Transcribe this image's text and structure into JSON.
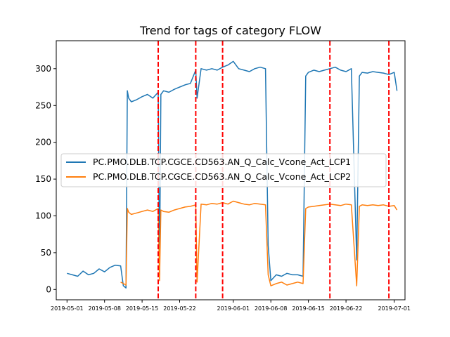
{
  "chart_data": {
    "type": "line",
    "title": "Trend for tags of category FLOW",
    "xlabel": "",
    "ylabel": "",
    "xlim": [
      "2019-04-29",
      "2019-07-03"
    ],
    "ylim": [
      -14,
      338
    ],
    "y_ticks": [
      0,
      50,
      100,
      150,
      200,
      250,
      300
    ],
    "x_ticks": [
      "2019-05-01",
      "2019-05-08",
      "2019-05-15",
      "2019-05-22",
      "2019-06-01",
      "2019-06-08",
      "2019-06-15",
      "2019-06-22",
      "2019-07-01"
    ],
    "grid": false,
    "legend_position": "center-left",
    "vlines": {
      "color": "#ff0000",
      "style": "dashed",
      "x": [
        "2019-05-18",
        "2019-05-25",
        "2019-05-30",
        "2019-06-19",
        "2019-06-30"
      ]
    },
    "series": [
      {
        "name": "PC.PMO.DLB.TCP.CGCE.CD563.AN_Q_Calc_Vcone_Act_LCP1",
        "color": "#1f77b4",
        "x": [
          "2019-05-01",
          "2019-05-02",
          "2019-05-03",
          "2019-05-04",
          "2019-05-05",
          "2019-05-06",
          "2019-05-07",
          "2019-05-08",
          "2019-05-09",
          "2019-05-10",
          "2019-05-11",
          "2019-05-11T12:00",
          "2019-05-12",
          "2019-05-12T06:00",
          "2019-05-12T12:00",
          "2019-05-13",
          "2019-05-14",
          "2019-05-15",
          "2019-05-16",
          "2019-05-17",
          "2019-05-18",
          "2019-05-18T06:00",
          "2019-05-18T12:00",
          "2019-05-19",
          "2019-05-20",
          "2019-05-21",
          "2019-05-22",
          "2019-05-23",
          "2019-05-24",
          "2019-05-25",
          "2019-05-25T06:00",
          "2019-05-26",
          "2019-05-27",
          "2019-05-28",
          "2019-05-29",
          "2019-05-30",
          "2019-05-31",
          "2019-06-01",
          "2019-06-02",
          "2019-06-03",
          "2019-06-04",
          "2019-06-05",
          "2019-06-06",
          "2019-06-07",
          "2019-06-07T12:00",
          "2019-06-08",
          "2019-06-09",
          "2019-06-10",
          "2019-06-11",
          "2019-06-12",
          "2019-06-13",
          "2019-06-14",
          "2019-06-14T12:00",
          "2019-06-15",
          "2019-06-16",
          "2019-06-17",
          "2019-06-18",
          "2019-06-19",
          "2019-06-20",
          "2019-06-21",
          "2019-06-22",
          "2019-06-23",
          "2019-06-24",
          "2019-06-24T12:00",
          "2019-06-25",
          "2019-06-26",
          "2019-06-27",
          "2019-06-28",
          "2019-06-29",
          "2019-06-30",
          "2019-07-01",
          "2019-07-01T12:00"
        ],
        "y": [
          22,
          20,
          18,
          25,
          20,
          22,
          28,
          24,
          30,
          33,
          32,
          5,
          2,
          270,
          260,
          255,
          258,
          262,
          265,
          260,
          268,
          20,
          265,
          270,
          268,
          272,
          275,
          278,
          280,
          298,
          260,
          300,
          298,
          300,
          298,
          302,
          305,
          310,
          300,
          298,
          296,
          300,
          302,
          300,
          60,
          12,
          20,
          18,
          22,
          20,
          20,
          18,
          290,
          295,
          298,
          296,
          298,
          300,
          302,
          298,
          296,
          300,
          40,
          290,
          295,
          294,
          296,
          295,
          294,
          292,
          295,
          270
        ]
      },
      {
        "name": "PC.PMO.DLB.TCP.CGCE.CD563.AN_Q_Calc_Vcone_Act_LCP2",
        "color": "#ff7f0e",
        "x": [
          "2019-05-11",
          "2019-05-11T12:00",
          "2019-05-12",
          "2019-05-12T06:00",
          "2019-05-12T12:00",
          "2019-05-13",
          "2019-05-14",
          "2019-05-15",
          "2019-05-16",
          "2019-05-17",
          "2019-05-18",
          "2019-05-18T06:00",
          "2019-05-18T12:00",
          "2019-05-19",
          "2019-05-20",
          "2019-05-21",
          "2019-05-22",
          "2019-05-23",
          "2019-05-24",
          "2019-05-25",
          "2019-05-25T06:00",
          "2019-05-26",
          "2019-05-27",
          "2019-05-28",
          "2019-05-29",
          "2019-05-30",
          "2019-05-31",
          "2019-06-01",
          "2019-06-02",
          "2019-06-03",
          "2019-06-04",
          "2019-06-05",
          "2019-06-06",
          "2019-06-07",
          "2019-06-07T12:00",
          "2019-06-08",
          "2019-06-09",
          "2019-06-10",
          "2019-06-11",
          "2019-06-12",
          "2019-06-13",
          "2019-06-14",
          "2019-06-14T12:00",
          "2019-06-15",
          "2019-06-16",
          "2019-06-17",
          "2019-06-18",
          "2019-06-19",
          "2019-06-20",
          "2019-06-21",
          "2019-06-22",
          "2019-06-23",
          "2019-06-24",
          "2019-06-24T12:00",
          "2019-06-25",
          "2019-06-26",
          "2019-06-27",
          "2019-06-28",
          "2019-06-29",
          "2019-06-30",
          "2019-07-01",
          "2019-07-01T12:00"
        ],
        "y": [
          10,
          8,
          6,
          110,
          105,
          102,
          104,
          106,
          108,
          106,
          110,
          12,
          108,
          106,
          105,
          108,
          110,
          112,
          113,
          115,
          10,
          116,
          115,
          117,
          116,
          118,
          116,
          120,
          118,
          116,
          115,
          117,
          116,
          115,
          20,
          5,
          8,
          10,
          6,
          8,
          10,
          8,
          110,
          112,
          113,
          114,
          115,
          116,
          115,
          114,
          116,
          115,
          5,
          113,
          115,
          114,
          115,
          114,
          115,
          113,
          114,
          108
        ]
      }
    ]
  }
}
